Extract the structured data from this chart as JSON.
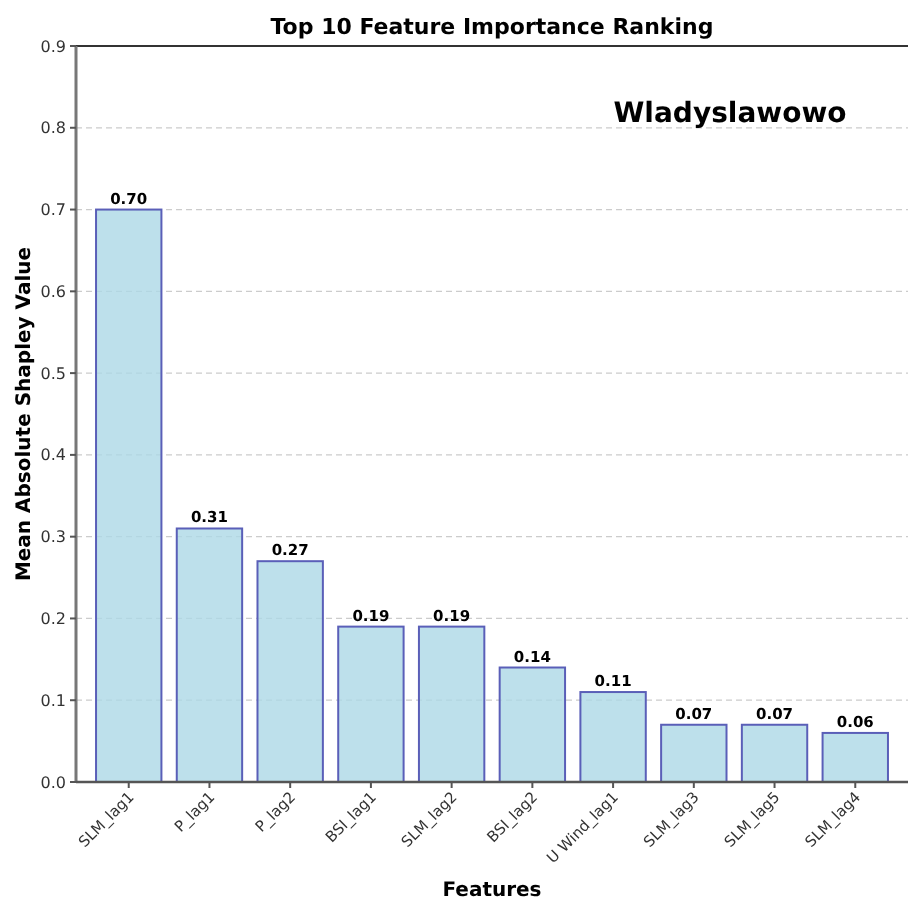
{
  "chart_data": {
    "type": "bar",
    "title": "Top 10 Feature Importance Ranking",
    "xlabel": "Features",
    "ylabel": "Mean Absolute Shapley Value",
    "categories": [
      "SLM_lag1",
      "P_lag1",
      "P_lag2",
      "BSI_lag1",
      "SLM_lag2",
      "BSI_lag2",
      "U Wind_lag1",
      "SLM_lag3",
      "SLM_lag5",
      "SLM_lag4"
    ],
    "values": [
      0.7,
      0.31,
      0.27,
      0.19,
      0.19,
      0.14,
      0.11,
      0.07,
      0.07,
      0.06
    ],
    "color": "#add8e6",
    "value_labels": [
      "0.70",
      "0.31",
      "0.27",
      "0.19",
      "0.19",
      "0.14",
      "0.11",
      "0.07",
      "0.07",
      "0.06"
    ],
    "ylim": [
      0,
      0.9
    ],
    "yticks": [
      {
        "value": 0,
        "label": "0.0"
      },
      0.1,
      0.2,
      0.3,
      0.4,
      0.5,
      0.6,
      0.7,
      0.8,
      0.9
    ],
    "grid": "y",
    "annotations": [
      "Wladyslawowo"
    ]
  }
}
